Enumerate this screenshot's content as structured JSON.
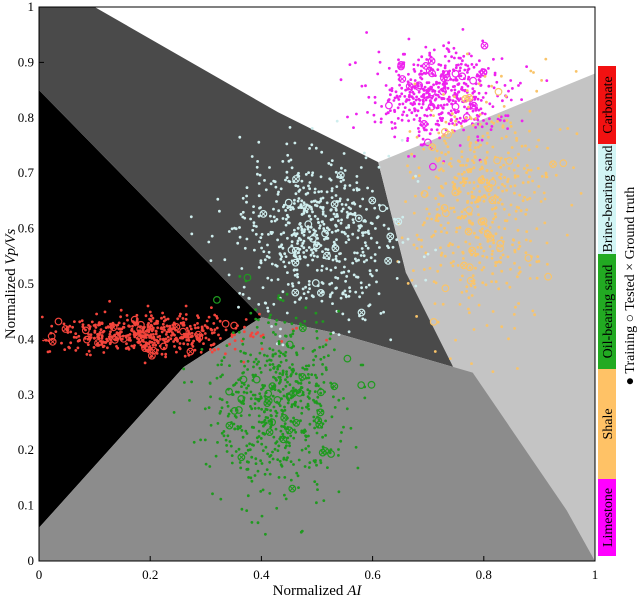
{
  "chart_data": {
    "type": "scatter",
    "xlabel_plain": "Normalized ",
    "xlabel_italic": "AI",
    "ylabel_plain": "Normalized ",
    "ylabel_italic": "Vp/Vs",
    "xlim": [
      0,
      1
    ],
    "ylim": [
      0,
      1
    ],
    "x_ticks": [
      "0",
      "0.2",
      "0.4",
      "0.6",
      "0.8",
      "1"
    ],
    "y_ticks": [
      "0",
      "0.1",
      "0.2",
      "0.3",
      "0.4",
      "0.5",
      "0.6",
      "0.7",
      "0.8",
      "0.9",
      "1"
    ],
    "grid": false,
    "legend_position": "right",
    "classes": [
      {
        "name": "Limestone",
        "color": "#ff00ff"
      },
      {
        "name": "Shale",
        "color": "#ffc266"
      },
      {
        "name": "Oil-bearing sand",
        "color": "#22aa22"
      },
      {
        "name": "Brine-bearing sand",
        "color": "#d2f5f5"
      },
      {
        "name": "Carbonate",
        "color": "#f21111"
      }
    ],
    "marker_legend": [
      {
        "symbol": "●",
        "label": "Training"
      },
      {
        "symbol": "○",
        "label": "Tested"
      },
      {
        "symbol": "×",
        "label": "Ground truth"
      }
    ],
    "regions": [
      {
        "class": "Carbonate",
        "color": "#000000",
        "polygon": [
          [
            0,
            0.85
          ],
          [
            0.4,
            0.44
          ],
          [
            0.26,
            0.35
          ],
          [
            0,
            0.06
          ]
        ]
      },
      {
        "class": "Brine-bearing sand",
        "color": "#4a4a4a",
        "polygon": [
          [
            0,
            1
          ],
          [
            0.1,
            1
          ],
          [
            0.43,
            0.81
          ],
          [
            0.61,
            0.72
          ],
          [
            0.66,
            0.52
          ],
          [
            0.78,
            0.34
          ],
          [
            0.54,
            0.41
          ],
          [
            0.4,
            0.44
          ],
          [
            0,
            0.85
          ]
        ]
      },
      {
        "class": "Limestone",
        "color": "#c4c4c4",
        "polygon": [
          [
            0.61,
            0.72
          ],
          [
            1,
            0.88
          ],
          [
            1,
            0
          ],
          [
            0.95,
            0.09
          ],
          [
            0.77,
            0.3
          ],
          [
            0.66,
            0.52
          ]
        ]
      },
      {
        "class": "Oil-bearing sand",
        "color": "#8c8c8c",
        "polygon": [
          [
            0,
            0.06
          ],
          [
            0.26,
            0.35
          ],
          [
            0.4,
            0.44
          ],
          [
            0.54,
            0.41
          ],
          [
            0.78,
            0.34
          ],
          [
            0.95,
            0.09
          ],
          [
            1,
            0
          ],
          [
            0,
            0
          ]
        ]
      }
    ],
    "clusters": [
      {
        "class": "Carbonate",
        "color": "#f4453c",
        "center": [
          0.2,
          0.41
        ],
        "spread": [
          0.085,
          0.018
        ],
        "count": 520,
        "seed": 11
      },
      {
        "class": "Limestone",
        "color": "#ee22ee",
        "center": [
          0.72,
          0.84
        ],
        "spread": [
          0.055,
          0.04
        ],
        "count": 520,
        "seed": 22
      },
      {
        "class": "Shale",
        "color": "#f9c46a",
        "center": [
          0.79,
          0.65
        ],
        "spread": [
          0.065,
          0.1
        ],
        "count": 560,
        "seed": 33
      },
      {
        "class": "Brine-bearing sand",
        "color": "#cfeeee",
        "center": [
          0.5,
          0.59
        ],
        "spread": [
          0.075,
          0.072
        ],
        "count": 620,
        "seed": 44
      },
      {
        "class": "Oil-bearing sand",
        "color": "#1f9a1f",
        "center": [
          0.43,
          0.28
        ],
        "spread": [
          0.06,
          0.085
        ],
        "count": 620,
        "seed": 55
      }
    ]
  }
}
